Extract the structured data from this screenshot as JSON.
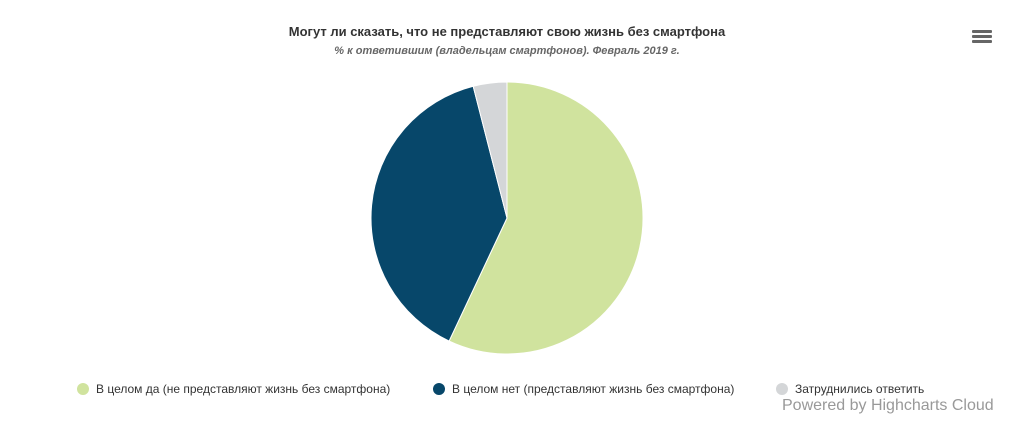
{
  "header": {
    "title": "Могут ли сказать, что не представляют свою жизнь без смартфона",
    "subtitle": "% к ответившим (владельцам смартфонов). Февраль 2019 г."
  },
  "menu": {
    "icon": "hamburger-menu-icon"
  },
  "legend": {
    "items": [
      {
        "label": "В целом да (не представляют жизнь без смартфона)",
        "color": "#d0e39e"
      },
      {
        "label": "В целом нет (представляют жизнь без смартфона)",
        "color": "#07476a"
      },
      {
        "label": "Затруднились ответить",
        "color": "#d4d6d8"
      }
    ]
  },
  "credits": {
    "text": "Powered by Highcharts Cloud"
  },
  "chart_data": {
    "type": "pie",
    "title": "Могут ли сказать, что не представляют свою жизнь без смартфона",
    "subtitle": "% к ответившим (владельцам смартфонов). Февраль 2019 г.",
    "categories": [
      "В целом да (не представляют жизнь без смартфона)",
      "В целом нет (представляют жизнь без смартфона)",
      "Затруднились ответить"
    ],
    "values": [
      57,
      39,
      4
    ],
    "colors": [
      "#d0e39e",
      "#07476a",
      "#d4d6d8"
    ],
    "legend_position": "bottom",
    "data_labels": false
  }
}
